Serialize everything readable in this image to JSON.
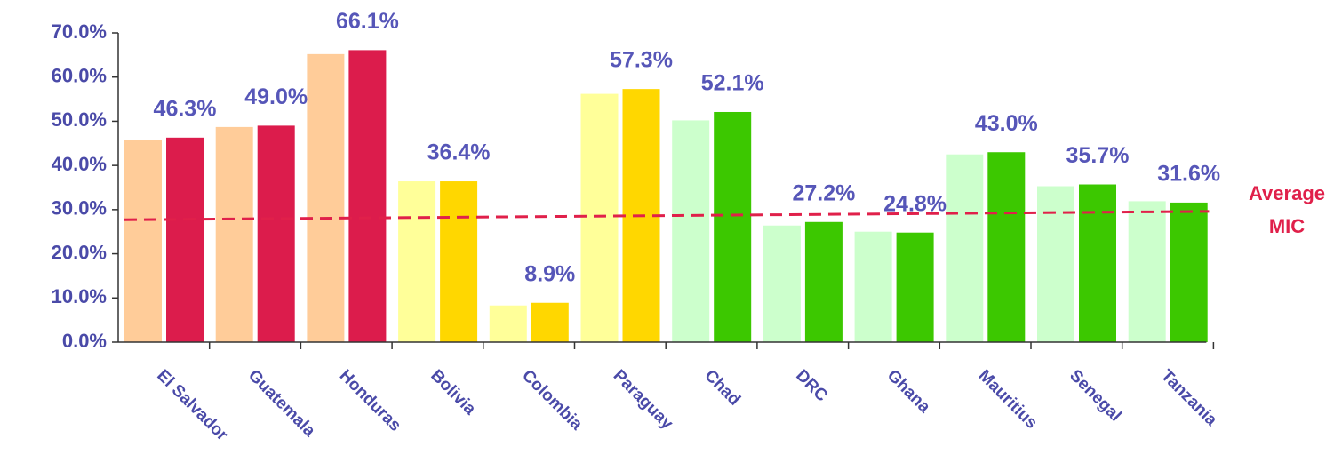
{
  "chart_data": {
    "type": "bar",
    "categories": [
      "El Salvador",
      "Guatemala",
      "Honduras",
      "Bolivia",
      "Colombia",
      "Paraguay",
      "Chad",
      "DRC",
      "Ghana",
      "Mauritius",
      "Senegal",
      "Tanzania"
    ],
    "series": [
      {
        "colors": [
          "#ffcc99",
          "#ffcc99",
          "#ffcc99",
          "#ffff99",
          "#ffff99",
          "#ffff99",
          "#ccffcc",
          "#ccffcc",
          "#ccffcc",
          "#ccffcc",
          "#ccffcc",
          "#ccffcc"
        ],
        "values": [
          45.7,
          48.7,
          65.2,
          36.4,
          8.3,
          56.2,
          50.2,
          26.4,
          25.0,
          42.5,
          35.3,
          31.9
        ]
      },
      {
        "colors": [
          "#dc1c4c",
          "#dc1c4c",
          "#dc1c4c",
          "#ffd700",
          "#ffd700",
          "#ffd700",
          "#3cc800",
          "#3cc800",
          "#3cc800",
          "#3cc800",
          "#3cc800",
          "#3cc800"
        ],
        "values": [
          46.3,
          49.0,
          66.1,
          36.4,
          8.9,
          57.3,
          52.1,
          27.2,
          24.8,
          43.0,
          35.7,
          31.6
        ],
        "value_labels": [
          "46.3%",
          "49.0%",
          "66.1%",
          "36.4%",
          "8.9%",
          "57.3%",
          "52.1%",
          "27.2%",
          "24.8%",
          "43.0%",
          "35.7%",
          "31.6%"
        ]
      }
    ],
    "reference_line": {
      "label_lines": [
        "Average",
        "MIC"
      ],
      "start": 27.7,
      "end": 29.6,
      "color": "#e0204a"
    },
    "ylim": [
      0,
      70
    ],
    "yticks": [
      {
        "value": 0,
        "label": "0.0%"
      },
      {
        "value": 10,
        "label": "10.0%"
      },
      {
        "value": 20,
        "label": "20.0%"
      },
      {
        "value": 30,
        "label": "30.0%"
      },
      {
        "value": 40,
        "label": "40.0%"
      },
      {
        "value": 50,
        "label": "50.0%"
      },
      {
        "value": 60,
        "label": "60.0%"
      },
      {
        "value": 70,
        "label": "70.0%"
      }
    ]
  }
}
